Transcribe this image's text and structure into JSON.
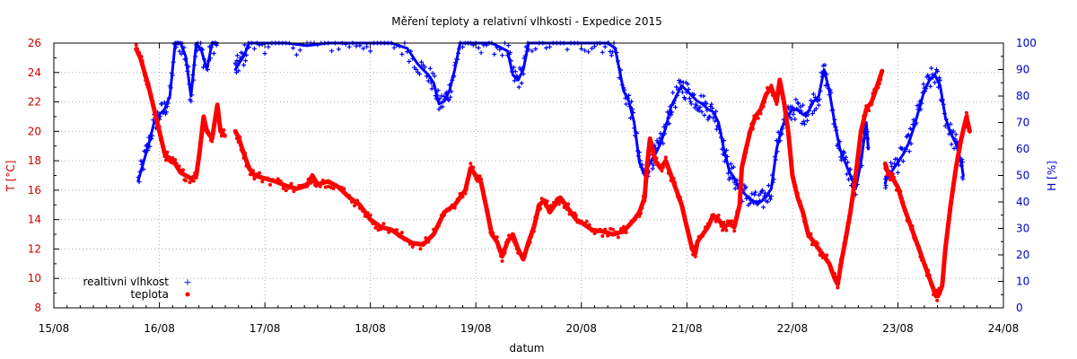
{
  "chart_data": {
    "type": "scatter",
    "title": "Měření teploty a relativní vlhkosti - Expedice 2015",
    "xlabel": "datum",
    "ylabel_left": "T [°C]",
    "ylabel_right": "H [%]",
    "x_ticks": [
      "15/08",
      "16/08",
      "17/08",
      "18/08",
      "19/08",
      "20/08",
      "21/08",
      "22/08",
      "23/08",
      "24/08"
    ],
    "xlim_days": [
      15,
      24
    ],
    "ylim_left": [
      8,
      26
    ],
    "ylim_right": [
      0,
      100
    ],
    "y_ticks_left": [
      "8",
      "10",
      "12",
      "14",
      "16",
      "18",
      "20",
      "22",
      "24",
      "26"
    ],
    "y_ticks_right": [
      "0",
      "10",
      "20",
      "30",
      "40",
      "50",
      "60",
      "70",
      "80",
      "90",
      "100"
    ],
    "grid": true,
    "legend_position": "bottom-left",
    "colors": {
      "temperature": "#ff0000",
      "humidity": "#0000ff",
      "left_axis": "#cc0000",
      "right_axis": "#0000cc"
    },
    "series": [
      {
        "name": "realtivni vlhkost",
        "axis": "right",
        "marker": "+",
        "segments": [
          [
            [
              15.8,
              48
            ],
            [
              15.85,
              55
            ],
            [
              15.9,
              62
            ],
            [
              15.95,
              70
            ],
            [
              16.0,
              73
            ],
            [
              16.05,
              75
            ],
            [
              16.1,
              80
            ],
            [
              16.15,
              100
            ],
            [
              16.2,
              100
            ],
            [
              16.25,
              95
            ],
            [
              16.3,
              80
            ],
            [
              16.35,
              100
            ],
            [
              16.4,
              97
            ],
            [
              16.45,
              90
            ],
            [
              16.5,
              100
            ],
            [
              16.55,
              100
            ]
          ],
          [
            [
              16.72,
              90
            ],
            [
              16.75,
              92
            ],
            [
              16.8,
              95
            ],
            [
              16.85,
              100
            ],
            [
              17.0,
              100
            ],
            [
              17.2,
              100
            ],
            [
              17.4,
              99
            ],
            [
              17.6,
              100
            ],
            [
              17.8,
              100
            ],
            [
              18.0,
              100
            ],
            [
              18.2,
              100
            ],
            [
              18.35,
              98
            ],
            [
              18.45,
              92
            ],
            [
              18.55,
              88
            ],
            [
              18.6,
              85
            ],
            [
              18.65,
              77
            ],
            [
              18.7,
              78
            ],
            [
              18.75,
              82
            ],
            [
              18.8,
              90
            ],
            [
              18.85,
              100
            ],
            [
              19.0,
              100
            ],
            [
              19.15,
              100
            ],
            [
              19.3,
              97
            ],
            [
              19.35,
              88
            ],
            [
              19.4,
              86
            ],
            [
              19.45,
              90
            ],
            [
              19.5,
              100
            ],
            [
              19.7,
              100
            ],
            [
              19.9,
              100
            ],
            [
              20.1,
              100
            ],
            [
              20.25,
              100
            ],
            [
              20.32,
              98
            ],
            [
              20.4,
              82
            ],
            [
              20.45,
              78
            ],
            [
              20.5,
              70
            ],
            [
              20.55,
              55
            ],
            [
              20.6,
              50
            ],
            [
              20.65,
              55
            ],
            [
              20.7,
              58
            ],
            [
              20.75,
              62
            ],
            [
              20.8,
              68
            ],
            [
              20.85,
              76
            ],
            [
              20.9,
              80
            ],
            [
              20.95,
              84
            ],
            [
              21.0,
              82
            ],
            [
              21.05,
              80
            ],
            [
              21.1,
              78
            ],
            [
              21.15,
              77
            ],
            [
              21.2,
              75
            ],
            [
              21.25,
              74
            ],
            [
              21.3,
              70
            ],
            [
              21.35,
              60
            ],
            [
              21.4,
              52
            ],
            [
              21.45,
              49
            ],
            [
              21.5,
              45
            ],
            [
              21.55,
              43
            ],
            [
              21.6,
              41
            ],
            [
              21.65,
              40
            ],
            [
              21.7,
              40
            ],
            [
              21.75,
              42
            ],
            [
              21.8,
              45
            ],
            [
              21.85,
              60
            ],
            [
              21.9,
              68
            ],
            [
              21.95,
              72
            ],
            [
              22.0,
              75
            ],
            [
              22.05,
              75
            ],
            [
              22.1,
              73
            ],
            [
              22.15,
              74
            ],
            [
              22.2,
              78
            ],
            [
              22.25,
              80
            ],
            [
              22.3,
              90
            ],
            [
              22.35,
              82
            ],
            [
              22.4,
              70
            ],
            [
              22.45,
              60
            ],
            [
              22.5,
              55
            ],
            [
              22.55,
              50
            ],
            [
              22.6,
              45
            ],
            [
              22.65,
              55
            ],
            [
              22.7,
              70
            ],
            [
              22.72,
              60
            ]
          ],
          [
            [
              22.88,
              47
            ],
            [
              22.9,
              50
            ],
            [
              22.95,
              52
            ],
            [
              23.0,
              55
            ],
            [
              23.05,
              58
            ],
            [
              23.1,
              62
            ],
            [
              23.15,
              68
            ],
            [
              23.2,
              75
            ],
            [
              23.25,
              82
            ],
            [
              23.3,
              86
            ],
            [
              23.35,
              88
            ],
            [
              23.4,
              84
            ],
            [
              23.45,
              72
            ],
            [
              23.5,
              66
            ],
            [
              23.55,
              62
            ],
            [
              23.6,
              55
            ],
            [
              23.62,
              50
            ]
          ]
        ]
      },
      {
        "name": "teplota",
        "axis": "left",
        "marker": "dot",
        "segments": [
          [
            [
              15.78,
              25.6
            ],
            [
              15.82,
              25.0
            ],
            [
              15.86,
              24.0
            ],
            [
              15.9,
              23.0
            ],
            [
              15.95,
              21.5
            ],
            [
              16.0,
              20.0
            ],
            [
              16.05,
              18.5
            ],
            [
              16.1,
              18.0
            ],
            [
              16.15,
              17.8
            ],
            [
              16.2,
              17.2
            ],
            [
              16.25,
              17.0
            ],
            [
              16.3,
              16.8
            ],
            [
              16.35,
              17.0
            ],
            [
              16.38,
              18.5
            ],
            [
              16.42,
              21.0
            ],
            [
              16.45,
              20.0
            ],
            [
              16.5,
              19.5
            ],
            [
              16.55,
              21.8
            ],
            [
              16.58,
              20.0
            ],
            [
              16.62,
              19.7
            ]
          ],
          [
            [
              16.72,
              20.0
            ],
            [
              16.75,
              19.6
            ],
            [
              16.8,
              18.5
            ],
            [
              16.85,
              17.5
            ],
            [
              16.9,
              17.0
            ],
            [
              17.0,
              16.8
            ],
            [
              17.1,
              16.6
            ],
            [
              17.2,
              16.3
            ],
            [
              17.3,
              16.1
            ],
            [
              17.4,
              16.3
            ],
            [
              17.45,
              17.0
            ],
            [
              17.5,
              16.4
            ],
            [
              17.6,
              16.6
            ],
            [
              17.7,
              16.2
            ],
            [
              17.8,
              15.5
            ],
            [
              17.9,
              15.0
            ],
            [
              18.0,
              14.0
            ],
            [
              18.1,
              13.5
            ],
            [
              18.2,
              13.3
            ],
            [
              18.3,
              12.8
            ],
            [
              18.4,
              12.4
            ],
            [
              18.5,
              12.3
            ],
            [
              18.6,
              13.0
            ],
            [
              18.7,
              14.5
            ],
            [
              18.8,
              15.0
            ],
            [
              18.9,
              16.0
            ],
            [
              18.95,
              17.5
            ],
            [
              19.0,
              17.0
            ],
            [
              19.05,
              16.5
            ],
            [
              19.1,
              14.8
            ],
            [
              19.15,
              13.0
            ],
            [
              19.2,
              12.5
            ],
            [
              19.25,
              11.5
            ],
            [
              19.3,
              12.5
            ],
            [
              19.35,
              13.0
            ],
            [
              19.4,
              12.0
            ],
            [
              19.45,
              11.3
            ],
            [
              19.5,
              12.5
            ],
            [
              19.55,
              13.5
            ],
            [
              19.6,
              15.0
            ],
            [
              19.65,
              15.3
            ],
            [
              19.7,
              14.5
            ],
            [
              19.75,
              15.0
            ],
            [
              19.8,
              15.5
            ],
            [
              19.85,
              15.0
            ],
            [
              19.9,
              14.5
            ],
            [
              19.95,
              14.0
            ],
            [
              20.0,
              13.8
            ],
            [
              20.1,
              13.3
            ],
            [
              20.2,
              13.2
            ],
            [
              20.3,
              13.0
            ],
            [
              20.4,
              13.2
            ],
            [
              20.5,
              14.0
            ],
            [
              20.55,
              14.5
            ],
            [
              20.6,
              15.5
            ],
            [
              20.62,
              17.5
            ],
            [
              20.65,
              19.5
            ],
            [
              20.7,
              18.0
            ],
            [
              20.75,
              17.5
            ],
            [
              20.8,
              18.0
            ],
            [
              20.85,
              17.0
            ],
            [
              20.9,
              16.0
            ],
            [
              20.95,
              15.0
            ],
            [
              21.0,
              13.5
            ],
            [
              21.05,
              12.0
            ],
            [
              21.08,
              11.7
            ],
            [
              21.1,
              12.5
            ],
            [
              21.15,
              13.0
            ],
            [
              21.2,
              13.5
            ],
            [
              21.25,
              14.3
            ],
            [
              21.3,
              14.0
            ],
            [
              21.35,
              13.5
            ],
            [
              21.4,
              13.7
            ],
            [
              21.45,
              13.5
            ],
            [
              21.5,
              15.0
            ],
            [
              21.52,
              17.5
            ],
            [
              21.55,
              18.5
            ],
            [
              21.6,
              20.0
            ],
            [
              21.65,
              21.0
            ],
            [
              21.7,
              21.5
            ],
            [
              21.75,
              22.5
            ],
            [
              21.8,
              23.0
            ],
            [
              21.85,
              22.0
            ],
            [
              21.88,
              23.5
            ],
            [
              21.92,
              22.0
            ],
            [
              21.96,
              20.0
            ],
            [
              22.0,
              17.0
            ],
            [
              22.05,
              15.5
            ],
            [
              22.1,
              14.5
            ],
            [
              22.15,
              13.0
            ],
            [
              22.2,
              12.5
            ],
            [
              22.25,
              12.0
            ],
            [
              22.3,
              11.5
            ],
            [
              22.35,
              11.0
            ],
            [
              22.4,
              10.0
            ],
            [
              22.43,
              9.6
            ],
            [
              22.46,
              11.0
            ],
            [
              22.5,
              12.5
            ],
            [
              22.55,
              14.5
            ],
            [
              22.6,
              17.0
            ],
            [
              22.65,
              20.0
            ],
            [
              22.7,
              21.5
            ],
            [
              22.75,
              22.0
            ],
            [
              22.8,
              23.0
            ],
            [
              22.85,
              24.1
            ]
          ],
          [
            [
              22.88,
              17.8
            ],
            [
              22.9,
              17.3
            ],
            [
              22.95,
              16.8
            ],
            [
              23.0,
              16.2
            ],
            [
              23.05,
              15.0
            ],
            [
              23.1,
              14.0
            ],
            [
              23.15,
              13.0
            ],
            [
              23.2,
              12.0
            ],
            [
              23.25,
              11.0
            ],
            [
              23.3,
              10.0
            ],
            [
              23.35,
              9.0
            ],
            [
              23.38,
              8.8
            ],
            [
              23.42,
              9.5
            ],
            [
              23.45,
              12.0
            ],
            [
              23.5,
              15.0
            ],
            [
              23.55,
              17.5
            ],
            [
              23.6,
              19.5
            ],
            [
              23.65,
              21.0
            ],
            [
              23.68,
              20.0
            ]
          ]
        ]
      }
    ]
  }
}
